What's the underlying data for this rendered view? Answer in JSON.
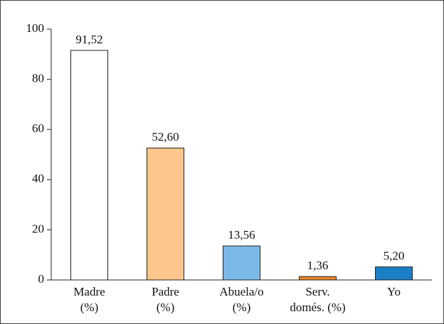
{
  "chart_data": {
    "type": "bar",
    "categories": [
      "Madre\n(%)",
      "Padre\n(%)",
      "Abuela/o\n(%)",
      "Serv.\ndomés. (%)",
      "Yo"
    ],
    "values": [
      91.52,
      52.6,
      13.56,
      1.36,
      5.2
    ],
    "value_labels": [
      "91,52",
      "52,60",
      "13,56",
      "1,36",
      "5,20"
    ],
    "colors": [
      "#ffffff",
      "#fdc68c",
      "#7bbae8",
      "#e8862b",
      "#1b7fc6"
    ],
    "ylim": [
      0,
      100
    ],
    "yticks": [
      0,
      20,
      40,
      60,
      80,
      100
    ]
  }
}
